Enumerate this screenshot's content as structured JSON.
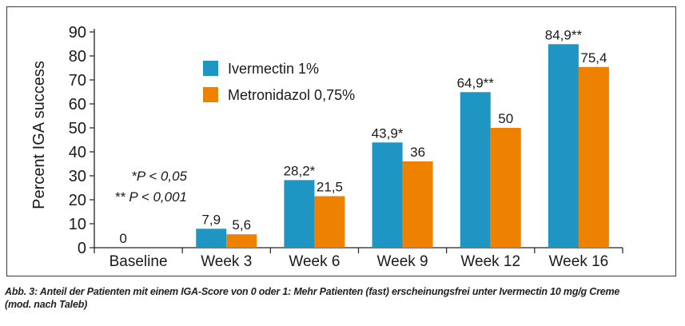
{
  "chart_data": {
    "type": "bar",
    "ylabel": "Percent IGA success",
    "ylim": [
      0,
      90
    ],
    "yticks": [
      0,
      10,
      20,
      30,
      40,
      50,
      60,
      70,
      80,
      90
    ],
    "grid": false,
    "legend_position": "top-left",
    "categories": [
      "Baseline",
      "Week 3",
      "Week 6",
      "Week 9",
      "Week 12",
      "Week 16"
    ],
    "series": [
      {
        "name": "Ivermectin 1%",
        "color": "#1f95c3",
        "values": [
          0,
          7.9,
          28.2,
          43.9,
          64.9,
          84.9
        ],
        "labels": [
          "0",
          "7,9",
          "28,2*",
          "43,9*",
          "64,9**",
          "84,9**"
        ]
      },
      {
        "name": "Metronidazol 0,75%",
        "color": "#ef8100",
        "values": [
          0,
          5.6,
          21.5,
          36,
          50,
          75.4
        ],
        "labels": [
          "",
          "5,6",
          "21,5",
          "36",
          "50",
          "75,4"
        ]
      }
    ],
    "annotations": [
      "*P < 0,05",
      "** P < 0,001"
    ]
  },
  "caption": {
    "line1": "Abb. 3: Anteil der Patienten mit einem IGA-Score von 0 oder 1: Mehr Patienten (fast) erscheinungsfrei unter Ivermectin 10 mg/g Creme",
    "line2": "(mod. nach Taleb)"
  }
}
